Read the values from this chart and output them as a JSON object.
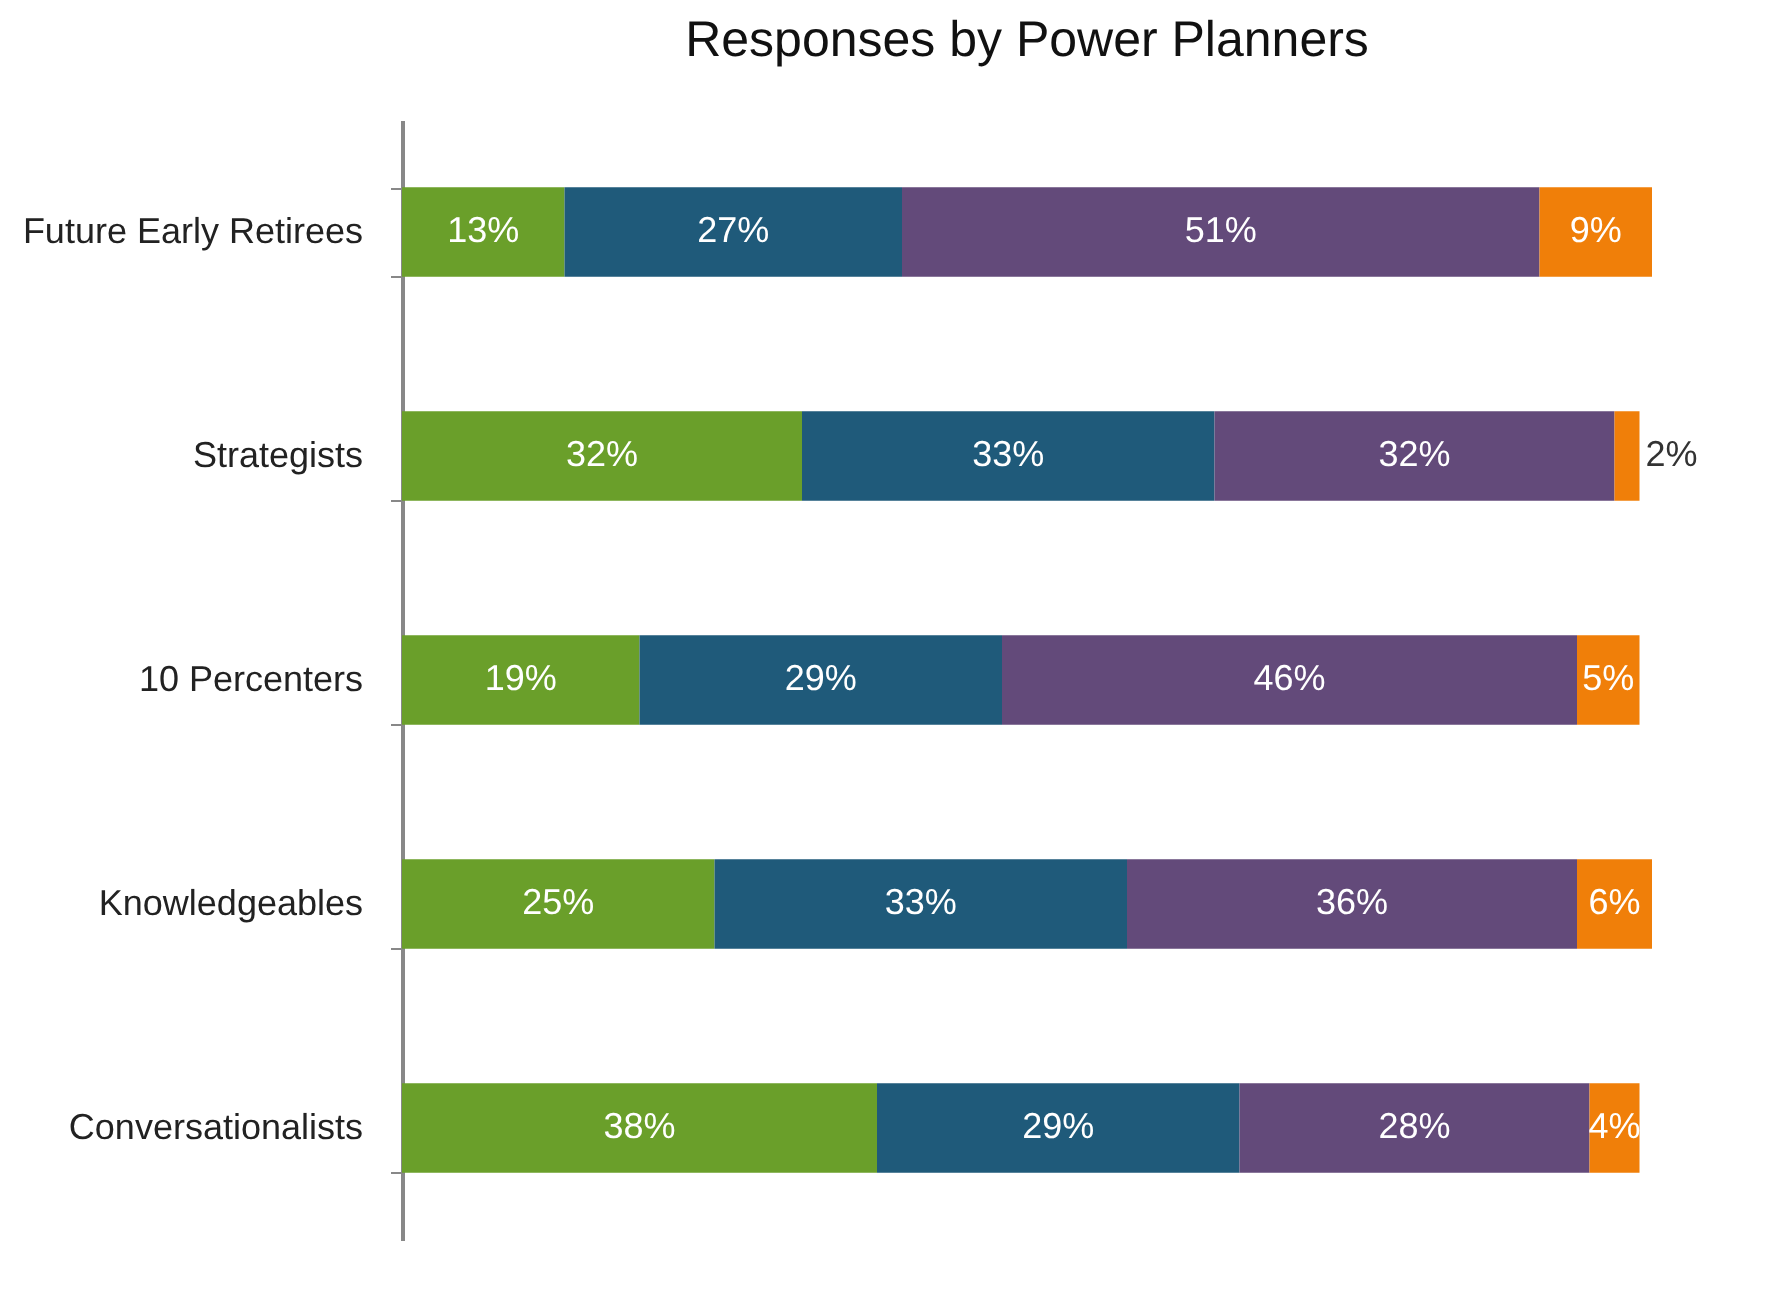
{
  "chart_data": {
    "type": "bar",
    "orientation": "horizontal",
    "stacked": true,
    "legend": false,
    "grid": false,
    "title": "Responses by Power Planners",
    "categories": [
      "Future Early Retirees",
      "Strategists",
      "10 Percenters",
      "Knowledgeables",
      "Conversationalists"
    ],
    "series": [
      {
        "color": "#6a9f2a",
        "values": [
          13,
          32,
          19,
          25,
          38
        ],
        "value_labels": [
          "13%",
          "32%",
          "19%",
          "25%",
          "38%"
        ]
      },
      {
        "color": "#1f5a7a",
        "values": [
          27,
          33,
          29,
          33,
          29
        ],
        "value_labels": [
          "27%",
          "33%",
          "29%",
          "33%",
          "29%"
        ]
      },
      {
        "color": "#634a7a",
        "values": [
          51,
          32,
          46,
          36,
          28
        ],
        "value_labels": [
          "51%",
          "32%",
          "46%",
          "36%",
          "28%"
        ]
      },
      {
        "color": "#f07f09",
        "values": [
          9,
          2,
          5,
          6,
          4
        ],
        "value_labels": [
          "9%",
          "2%",
          "5%",
          "6%",
          "4%"
        ]
      }
    ]
  }
}
